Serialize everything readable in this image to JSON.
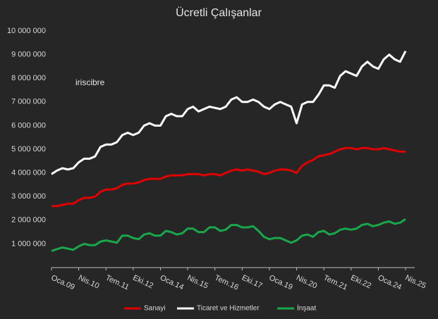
{
  "chart_data": {
    "type": "line",
    "title": "Ücretli Çalışanlar",
    "annotation": "iriscibre",
    "categories": [
      "Oca.09",
      null,
      null,
      null,
      null,
      "Nis.10",
      null,
      null,
      null,
      null,
      "Tem.11",
      null,
      null,
      null,
      null,
      "Eki.12",
      null,
      null,
      null,
      null,
      "Oca.14",
      null,
      null,
      null,
      null,
      "Nis.15",
      null,
      null,
      null,
      null,
      "Tem.16",
      null,
      null,
      null,
      null,
      "Eki.17",
      null,
      null,
      null,
      null,
      "Oca.19",
      null,
      null,
      null,
      null,
      "Nis.20",
      null,
      null,
      null,
      null,
      "Tem.21",
      null,
      null,
      null,
      null,
      "Eki.22",
      null,
      null,
      null,
      null,
      "Oca.24",
      null,
      null,
      null,
      null,
      "Nis.25"
    ],
    "series": [
      {
        "name": "Sanayi",
        "color": "#e00000",
        "values": [
          2600000,
          2600000,
          2650000,
          2700000,
          2700000,
          2850000,
          2950000,
          2950000,
          3000000,
          3200000,
          3300000,
          3300000,
          3350000,
          3500000,
          3550000,
          3550000,
          3600000,
          3700000,
          3750000,
          3750000,
          3750000,
          3850000,
          3900000,
          3900000,
          3900000,
          3950000,
          3950000,
          3950000,
          3900000,
          3950000,
          3950000,
          3900000,
          4000000,
          4100000,
          4150000,
          4100000,
          4150000,
          4100000,
          4050000,
          3950000,
          4000000,
          4100000,
          4150000,
          4150000,
          4100000,
          4000000,
          4300000,
          4450000,
          4550000,
          4700000,
          4750000,
          4800000,
          4900000,
          5000000,
          5050000,
          5050000,
          5000000,
          5050000,
          5050000,
          5000000,
          5000000,
          5050000,
          5000000,
          4950000,
          4900000,
          4900000
        ]
      },
      {
        "name": "Ticaret ve Hizmetler",
        "color": "#ffffff",
        "values": [
          3950000,
          4100000,
          4200000,
          4150000,
          4200000,
          4450000,
          4600000,
          4600000,
          4700000,
          5100000,
          5200000,
          5200000,
          5300000,
          5600000,
          5700000,
          5600000,
          5700000,
          6000000,
          6100000,
          6000000,
          6000000,
          6400000,
          6500000,
          6400000,
          6400000,
          6700000,
          6800000,
          6600000,
          6700000,
          6800000,
          6750000,
          6700000,
          6800000,
          7100000,
          7200000,
          7000000,
          7000000,
          7100000,
          7000000,
          6800000,
          6700000,
          6900000,
          7000000,
          6900000,
          6800000,
          6100000,
          6900000,
          7000000,
          7000000,
          7300000,
          7700000,
          7700000,
          7600000,
          8100000,
          8300000,
          8200000,
          8100000,
          8500000,
          8700000,
          8500000,
          8400000,
          8800000,
          9000000,
          8800000,
          8700000,
          9150000
        ]
      },
      {
        "name": "İnşaat",
        "color": "#1aa64a",
        "values": [
          700000,
          780000,
          850000,
          800000,
          750000,
          900000,
          1000000,
          950000,
          950000,
          1100000,
          1150000,
          1100000,
          1050000,
          1350000,
          1350000,
          1250000,
          1200000,
          1400000,
          1450000,
          1350000,
          1350000,
          1550000,
          1500000,
          1400000,
          1450000,
          1650000,
          1650000,
          1500000,
          1500000,
          1700000,
          1700000,
          1550000,
          1600000,
          1800000,
          1800000,
          1700000,
          1700000,
          1750000,
          1550000,
          1300000,
          1200000,
          1250000,
          1250000,
          1150000,
          1050000,
          1150000,
          1350000,
          1400000,
          1300000,
          1500000,
          1550000,
          1400000,
          1450000,
          1600000,
          1650000,
          1600000,
          1650000,
          1800000,
          1850000,
          1750000,
          1800000,
          1900000,
          1950000,
          1850000,
          1900000,
          2050000
        ]
      }
    ],
    "ylim": [
      0,
      10000000
    ],
    "yticks": [
      {
        "value": 1000000,
        "label": "1 000 000"
      },
      {
        "value": 2000000,
        "label": "2 000 000"
      },
      {
        "value": 3000000,
        "label": "3 000 000"
      },
      {
        "value": 4000000,
        "label": "4 000 000"
      },
      {
        "value": 5000000,
        "label": "5 000 000"
      },
      {
        "value": 6000000,
        "label": "6 000 000"
      },
      {
        "value": 7000000,
        "label": "7 000 000"
      },
      {
        "value": 8000000,
        "label": "8 000 000"
      },
      {
        "value": 9000000,
        "label": "9 000 000"
      },
      {
        "value": 10000000,
        "label": "10 000 000"
      }
    ],
    "grid": false,
    "legend": "bottom"
  }
}
